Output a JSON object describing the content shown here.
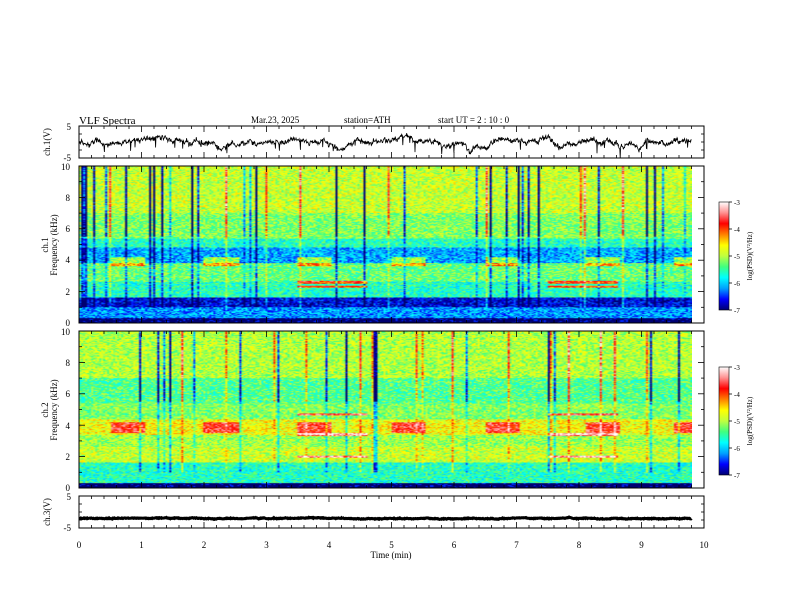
{
  "header": {
    "title": "VLF  Spectra",
    "date": "Mar.23, 2025",
    "station": "station=ATH",
    "start": "start  UT  =    2  : 10 : 0"
  },
  "chart_data": [
    {
      "type": "line",
      "panel": "ch1-waveform",
      "ylabel": "ch.1(V)",
      "ylim": [
        -5,
        5
      ],
      "yticks": [
        "5",
        "-5"
      ],
      "xlim": [
        0,
        10
      ],
      "trace_end_min": 9.8,
      "baseline": 0,
      "noise_amplitude": 1.2
    },
    {
      "type": "heatmap",
      "panel": "ch1-spectrogram",
      "ylabel": "ch.1\nFrequency  (kHz)",
      "ylabel_lines": [
        "ch.1",
        "Frequency  (kHz)"
      ],
      "ylim": [
        0,
        10
      ],
      "yticks": [
        "0",
        "2",
        "4",
        "6",
        "8",
        "10"
      ],
      "xlim": [
        0,
        10
      ],
      "data_end_min": 9.8,
      "colorbar": {
        "label": "log(PSD)(V²/Hz)",
        "range": [
          -7,
          -3
        ],
        "ticks": [
          "-3",
          "-4",
          "-5",
          "-6",
          "-7"
        ],
        "colors": [
          "#000070",
          "#0000ff",
          "#00a0ff",
          "#00ffff",
          "#40ff80",
          "#c0ff40",
          "#ffff00",
          "#ff8000",
          "#ff0000",
          "#ff9090",
          "#ffffff"
        ]
      },
      "bands": [
        {
          "f0": 0.0,
          "f1": 0.3,
          "level": -7.5
        },
        {
          "f0": 0.3,
          "f1": 1.0,
          "level": -6.2
        },
        {
          "f0": 1.0,
          "f1": 1.6,
          "level": -6.7
        },
        {
          "f0": 1.6,
          "f1": 2.6,
          "level": -5.6
        },
        {
          "f0": 2.6,
          "f1": 3.8,
          "level": -5.3
        },
        {
          "f0": 3.8,
          "f1": 4.8,
          "level": -6.1
        },
        {
          "f0": 4.8,
          "f1": 5.4,
          "level": -5.6
        },
        {
          "f0": 5.4,
          "f1": 7.0,
          "level": -5.2
        },
        {
          "f0": 7.0,
          "f1": 10.0,
          "level": -4.9
        }
      ],
      "bursts_kHz": [
        3.6,
        4.2
      ],
      "lines_kHz": [
        2.3,
        2.6
      ]
    },
    {
      "type": "heatmap",
      "panel": "ch2-spectrogram",
      "ylabel": "ch.2\nFrequency  (kHz)",
      "ylabel_lines": [
        "ch.2",
        "Frequency  (kHz)"
      ],
      "ylim": [
        0,
        10
      ],
      "yticks": [
        "0",
        "2",
        "4",
        "6",
        "8",
        "10"
      ],
      "xlim": [
        0,
        10
      ],
      "data_end_min": 9.8,
      "colorbar": {
        "label": "log(PSD)(V²/Hz)",
        "range": [
          -7,
          -3
        ],
        "ticks": [
          "-3",
          "-4",
          "-5",
          "-6",
          "-7"
        ],
        "colors": [
          "#000070",
          "#0000ff",
          "#00a0ff",
          "#00ffff",
          "#40ff80",
          "#c0ff40",
          "#ffff00",
          "#ff8000",
          "#ff0000",
          "#ff9090",
          "#ffffff"
        ]
      },
      "bands": [
        {
          "f0": 0.0,
          "f1": 0.3,
          "level": -7.5
        },
        {
          "f0": 0.3,
          "f1": 1.6,
          "level": -5.6
        },
        {
          "f0": 1.6,
          "f1": 2.6,
          "level": -4.9
        },
        {
          "f0": 2.6,
          "f1": 3.4,
          "level": -5.1
        },
        {
          "f0": 3.4,
          "f1": 4.4,
          "level": -4.7
        },
        {
          "f0": 4.4,
          "f1": 5.4,
          "level": -5.2
        },
        {
          "f0": 5.4,
          "f1": 7.0,
          "level": -5.4
        },
        {
          "f0": 7.0,
          "f1": 10.0,
          "level": -5.0
        }
      ],
      "bursts_kHz": [
        3.5,
        4.2
      ],
      "lines_kHz": [
        2.0,
        3.4,
        4.7
      ]
    },
    {
      "type": "line",
      "panel": "ch3-waveform",
      "ylabel": "ch.3(V)",
      "ylim": [
        -5,
        5
      ],
      "yticks": [
        "5",
        "-5"
      ],
      "xlim": [
        0,
        10
      ],
      "xticks": [
        "0",
        "1",
        "2",
        "3",
        "4",
        "5",
        "6",
        "7",
        "8",
        "9",
        "10"
      ],
      "xlabel": "Time  (min)",
      "trace_end_min": 9.8,
      "baseline": -2,
      "noise_amplitude": 0.15
    }
  ]
}
